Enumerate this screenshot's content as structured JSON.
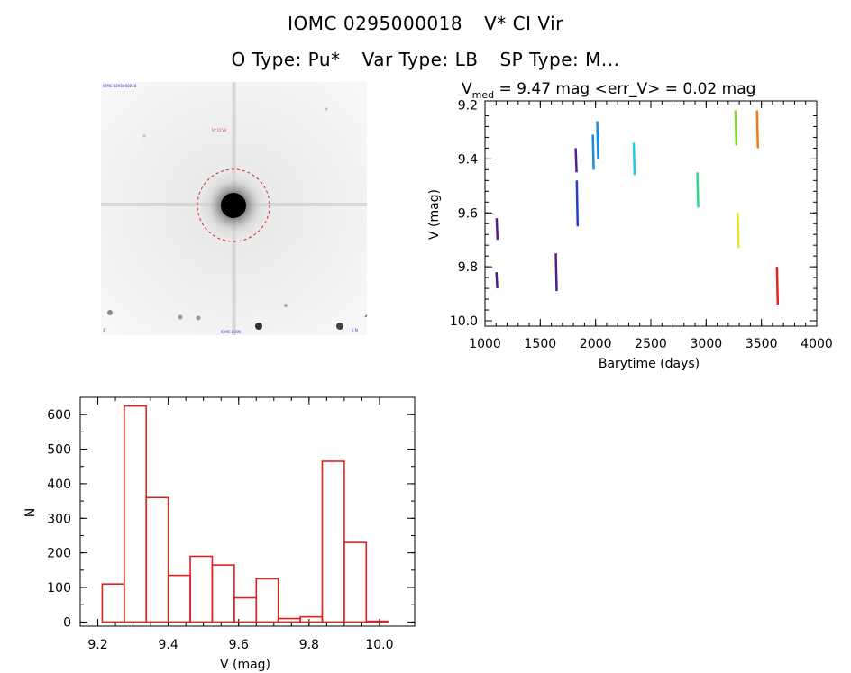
{
  "header": {
    "object_id": "IOMC 0295000018",
    "object_name": "V* CI Vir",
    "o_type": "O Type: Pu*",
    "var_type": "Var Type: LB",
    "sp_type": "SP Type: M..."
  },
  "lightcurve_header": {
    "vmed_label": "V",
    "vmed_sub": "med",
    "stats": " = 9.47 mag <err_V> = 0.02 mag"
  },
  "sky_image": {
    "top_left_label": "IOMC 0295000018",
    "target_label": "V* CI Vir",
    "bottom_left_label": "3'",
    "bottom_center_label": "IOMC ICON",
    "bottom_right_label": "E N"
  },
  "chart_data": [
    {
      "type": "scatter",
      "xlabel": "Barytime (days)",
      "ylabel": "V (mag)",
      "xlim": [
        1000,
        4000
      ],
      "ylim": [
        10.0,
        9.2
      ],
      "y_inverted": true,
      "x_ticks": [
        1000,
        1500,
        2000,
        2500,
        3000,
        3500,
        4000
      ],
      "y_ticks": [
        "9.2",
        "9.4",
        "9.6",
        "9.8",
        "10.0"
      ],
      "y_tick_values": [
        9.2,
        9.4,
        9.6,
        9.8,
        10.0
      ],
      "grid": false,
      "series": [
        {
          "color": "#551a8b",
          "x": 1105,
          "y_range": [
            9.62,
            9.7
          ]
        },
        {
          "color": "#551a8b",
          "x": 1103,
          "y_range": [
            9.82,
            9.88
          ]
        },
        {
          "color": "#551a8b",
          "x": 1640,
          "y_range": [
            9.75,
            9.89
          ]
        },
        {
          "color": "#551a8b",
          "x": 1820,
          "y_range": [
            9.36,
            9.45
          ]
        },
        {
          "color": "#1f3fd0",
          "x": 1830,
          "y_range": [
            9.48,
            9.65
          ]
        },
        {
          "color": "#1a8fd8",
          "x": 1975,
          "y_range": [
            9.31,
            9.44
          ]
        },
        {
          "color": "#1a8fd8",
          "x": 2015,
          "y_range": [
            9.26,
            9.4
          ]
        },
        {
          "color": "#22c8e8",
          "x": 2345,
          "y_range": [
            9.34,
            9.46
          ]
        },
        {
          "color": "#2ed88a",
          "x": 2920,
          "y_range": [
            9.45,
            9.58
          ]
        },
        {
          "color": "#7fdc22",
          "x": 3265,
          "y_range": [
            9.22,
            9.35
          ]
        },
        {
          "color": "#e8e020",
          "x": 3285,
          "y_range": [
            9.6,
            9.73
          ]
        },
        {
          "color": "#f07a10",
          "x": 3460,
          "y_range": [
            9.22,
            9.36
          ]
        },
        {
          "color": "#e82020",
          "x": 3640,
          "y_range": [
            9.8,
            9.94
          ]
        }
      ]
    },
    {
      "type": "bar",
      "xlabel": "V (mag)",
      "ylabel": "N",
      "xlim": [
        9.15,
        10.1
      ],
      "ylim": [
        0,
        650
      ],
      "x_ticks": [
        "9.2",
        "9.4",
        "9.6",
        "9.8",
        "10.0"
      ],
      "x_tick_values": [
        9.2,
        9.4,
        9.6,
        9.8,
        10.0
      ],
      "y_ticks": [
        "0",
        "100",
        "200",
        "300",
        "400",
        "500",
        "600"
      ],
      "y_tick_values": [
        0,
        100,
        200,
        300,
        400,
        500,
        600
      ],
      "bin_width": 0.0625,
      "bin_edges_start": 9.2125,
      "values": [
        110,
        625,
        360,
        135,
        190,
        165,
        70,
        125,
        10,
        15,
        465,
        230,
        2
      ],
      "color": "#e02020"
    }
  ]
}
